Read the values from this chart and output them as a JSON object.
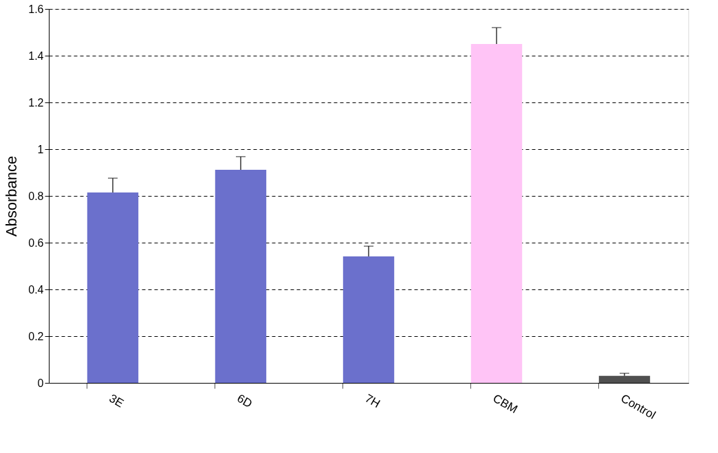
{
  "chart_data": {
    "type": "bar",
    "ylabel": "Absorbance",
    "categories": [
      "3E",
      "6D",
      "7H",
      "CBM",
      "Control"
    ],
    "values": [
      0.815,
      0.912,
      0.541,
      1.45,
      0.03
    ],
    "errors": [
      [
        0.815,
        0.876
      ],
      [
        0.912,
        0.968
      ],
      [
        0.541,
        0.585
      ],
      [
        1.45,
        1.52
      ],
      [
        0.03,
        0.041
      ]
    ],
    "colors": [
      "#6b70cc",
      "#6b70cc",
      "#6b70cc",
      "#ffc4f6",
      "#505050"
    ],
    "ylim": [
      0,
      1.6
    ],
    "yticks": [
      0,
      0.2,
      0.4,
      0.6,
      0.8,
      1,
      1.2,
      1.4,
      1.6
    ],
    "grid": "y"
  }
}
